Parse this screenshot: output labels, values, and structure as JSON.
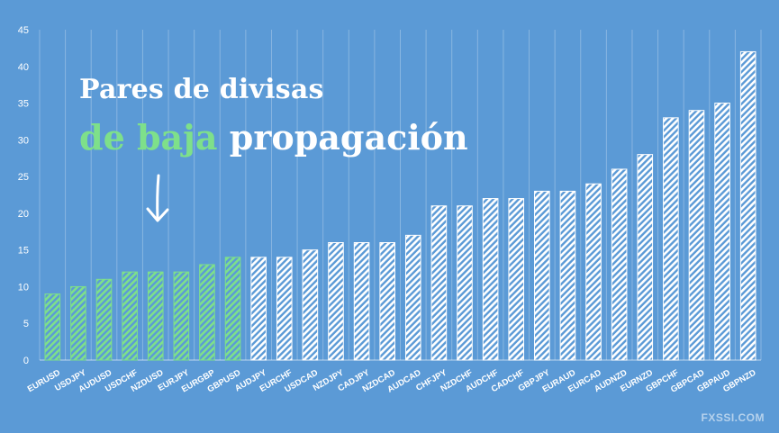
{
  "title": {
    "line1": "Pares de divisas",
    "line2_highlight": "de baja",
    "line2_rest": "propagación"
  },
  "watermark": "FXSSI.COM",
  "colors": {
    "background": "#5b9ad6",
    "highlight": "#7ee08a",
    "bar_white": "#ffffff",
    "text": "#ffffff"
  },
  "chart_data": {
    "type": "bar",
    "categories": [
      "EURUSD",
      "USDJPY",
      "AUDUSD",
      "USDCHF",
      "NZDUSD",
      "EURJPY",
      "EURGBP",
      "GBPUSD",
      "AUDJPY",
      "EURCHF",
      "USDCAD",
      "NZDJPY",
      "CADJPY",
      "NZDCAD",
      "AUDCAD",
      "CHFJPY",
      "NZDCHF",
      "AUDCHF",
      "CADCHF",
      "GBPJPY",
      "EURAUD",
      "EURCAD",
      "AUDNZD",
      "EURNZD",
      "GBPCHF",
      "GBPCAD",
      "GBPAUD",
      "GBPNZD"
    ],
    "values": [
      9,
      10,
      11,
      12,
      12,
      12,
      13,
      14,
      14,
      14,
      15,
      16,
      16,
      16,
      17,
      21,
      21,
      22,
      22,
      23,
      23,
      24,
      26,
      28,
      33,
      34,
      35,
      42
    ],
    "highlighted_count": 8,
    "ylim": [
      0,
      45
    ],
    "yticks": [
      0,
      5,
      10,
      15,
      20,
      25,
      30,
      35,
      40,
      45
    ],
    "grid": "vertical lines"
  }
}
